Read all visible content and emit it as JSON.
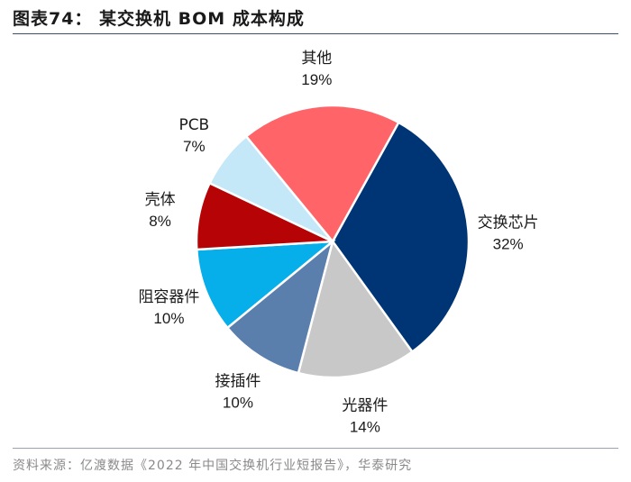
{
  "title": "图表74： 某交换机 BOM 成本构成",
  "source": "资料来源：亿渡数据《2022 年中国交换机行业短报告》，华泰研究",
  "chart_data": {
    "type": "pie",
    "title": "",
    "start_label": "交换芯片",
    "slices": [
      {
        "label": "交换芯片",
        "value": 32,
        "value_label": "32%",
        "color": "#003575"
      },
      {
        "label": "光器件",
        "value": 14,
        "value_label": "14%",
        "color": "#c8c8c8"
      },
      {
        "label": "接插件",
        "value": 10,
        "value_label": "10%",
        "color": "#5b7fac"
      },
      {
        "label": "阻容器件",
        "value": 10,
        "value_label": "10%",
        "color": "#06aeea"
      },
      {
        "label": "壳体",
        "value": 8,
        "value_label": "8%",
        "color": "#b50306"
      },
      {
        "label": "PCB",
        "value": 7,
        "value_label": "7%",
        "color": "#c5e8f8"
      },
      {
        "label": "其他",
        "value": 19,
        "value_label": "19%",
        "color": "#ff6468"
      }
    ],
    "direction": "clockwise"
  }
}
